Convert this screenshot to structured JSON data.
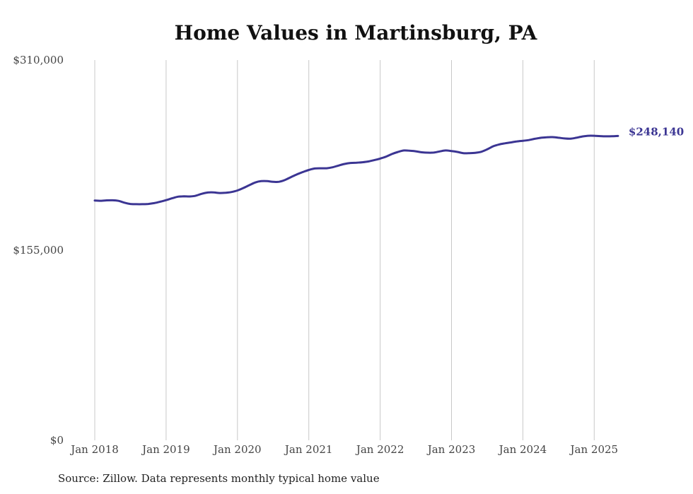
{
  "chart_data": {
    "type": "line",
    "title": "Home Values in Martinsburg, PA",
    "source": "Source: Zillow. Data represents monthly typical home value",
    "ylim": [
      0,
      310000
    ],
    "y_ticks": [
      {
        "value": 0,
        "label": "$0"
      },
      {
        "value": 155000,
        "label": "$155,000"
      },
      {
        "value": 310000,
        "label": "$310,000"
      }
    ],
    "x_ticks": [
      {
        "value": "2018-01",
        "label": "Jan 2018"
      },
      {
        "value": "2019-01",
        "label": "Jan 2019"
      },
      {
        "value": "2020-01",
        "label": "Jan 2020"
      },
      {
        "value": "2021-01",
        "label": "Jan 2021"
      },
      {
        "value": "2022-01",
        "label": "Jan 2022"
      },
      {
        "value": "2023-01",
        "label": "Jan 2023"
      },
      {
        "value": "2024-01",
        "label": "Jan 2024"
      },
      {
        "value": "2025-01",
        "label": "Jan 2025"
      }
    ],
    "grid": "vertical",
    "line_color": "#3b3593",
    "end_label": "$248,140",
    "series": [
      {
        "x": [
          "2018-01",
          "2018-02",
          "2018-03",
          "2018-04",
          "2018-05",
          "2018-06",
          "2018-07",
          "2018-08",
          "2018-09",
          "2018-10",
          "2018-11",
          "2018-12",
          "2019-01",
          "2019-02",
          "2019-03",
          "2019-04",
          "2019-05",
          "2019-06",
          "2019-07",
          "2019-08",
          "2019-09",
          "2019-10",
          "2019-11",
          "2019-12",
          "2020-01",
          "2020-02",
          "2020-03",
          "2020-04",
          "2020-05",
          "2020-06",
          "2020-07",
          "2020-08",
          "2020-09",
          "2020-10",
          "2020-11",
          "2020-12",
          "2021-01",
          "2021-02",
          "2021-03",
          "2021-04",
          "2021-05",
          "2021-06",
          "2021-07",
          "2021-08",
          "2021-09",
          "2021-10",
          "2021-11",
          "2021-12",
          "2022-01",
          "2022-02",
          "2022-03",
          "2022-04",
          "2022-05",
          "2022-06",
          "2022-07",
          "2022-08",
          "2022-09",
          "2022-10",
          "2022-11",
          "2022-12",
          "2023-01",
          "2023-02",
          "2023-03",
          "2023-04",
          "2023-05",
          "2023-06",
          "2023-07",
          "2023-08",
          "2023-09",
          "2023-10",
          "2023-11",
          "2023-12",
          "2024-01",
          "2024-02",
          "2024-03",
          "2024-04",
          "2024-05",
          "2024-06",
          "2024-07",
          "2024-08",
          "2024-09",
          "2024-10",
          "2024-11",
          "2024-12",
          "2025-01",
          "2025-02",
          "2025-03",
          "2025-04",
          "2025-05"
        ],
        "values": [
          195500,
          195300,
          195600,
          195700,
          195200,
          193700,
          192700,
          192500,
          192500,
          192700,
          193400,
          194500,
          195800,
          197300,
          198600,
          198900,
          198800,
          199400,
          201000,
          202000,
          202100,
          201600,
          201800,
          202400,
          203700,
          205700,
          208000,
          210200,
          211300,
          211300,
          210700,
          210800,
          212300,
          214600,
          216800,
          218700,
          220400,
          221600,
          221800,
          221800,
          222600,
          224000,
          225300,
          226100,
          226300,
          226700,
          227300,
          228400,
          229700,
          231300,
          233400,
          235100,
          236300,
          236100,
          235600,
          234800,
          234500,
          234600,
          235500,
          236300,
          235800,
          235100,
          234100,
          234100,
          234400,
          235200,
          237200,
          239700,
          241200,
          242100,
          242900,
          243700,
          244200,
          244800,
          245800,
          246600,
          247100,
          247200,
          246700,
          246100,
          245900,
          246700,
          247700,
          248300,
          248300,
          248000,
          247800,
          247900,
          248140
        ]
      }
    ]
  }
}
